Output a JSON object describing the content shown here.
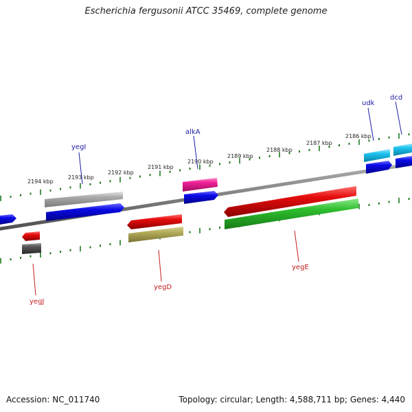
{
  "title": "Escherichia fergusonii ATCC 35469, complete genome",
  "footer": {
    "accession": "Accession: NC_011740",
    "summary": "Topology: circular; Length: 4,588,711 bp; Genes: 4,440"
  },
  "scale": {
    "unit": "kbp",
    "ticks": [
      "2194 kbp",
      "2193 kbp",
      "2192 kbp",
      "2191 kbp",
      "2190 kbp",
      "2189 kbp",
      "2188 kbp",
      "2187 kbp",
      "2186 kbp"
    ]
  },
  "genes": {
    "forward_labels": [
      "yegI",
      "alkA",
      "udk",
      "dcd"
    ],
    "reverse_labels": [
      "yegJ",
      "yegD",
      "yegE"
    ]
  },
  "colors": {
    "backbone": "#808080",
    "scale_ticks": "#1e7a1e",
    "forward_label": "#1a1aa6",
    "reverse_label": "#c41c1c",
    "cds_blue": "#0a0ae6",
    "cds_red": "#e60c0c",
    "cds_green": "#2fbf2f",
    "cds_olive": "#b4ad5a",
    "cds_magenta": "#ee1f96",
    "cds_cyan": "#1ec3ef",
    "cds_grey": "#aaaaaa",
    "cds_darkgrey": "#555555"
  }
}
